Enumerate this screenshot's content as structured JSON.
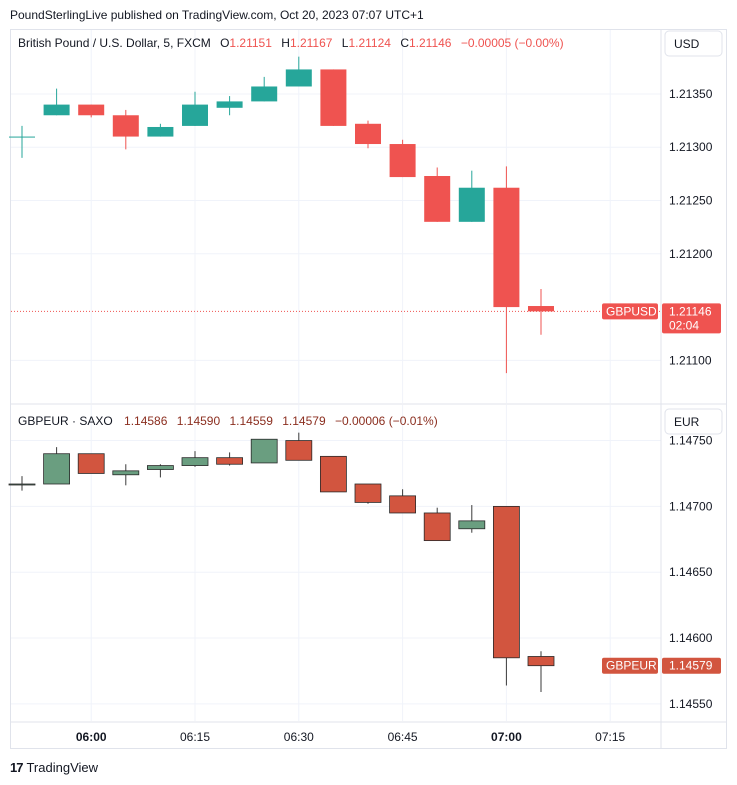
{
  "header": {
    "published": "PoundSterlingLive published on TradingView.com, Oct 20, 2023 07:07 UTC+1"
  },
  "footer": {
    "logo_glyph": "17",
    "brand": "TradingView"
  },
  "colors": {
    "up_top": "#26a69a",
    "down_top": "#ef5350",
    "up_bottom": "#6a9e80",
    "down_bottom": "#d2553f",
    "text": "#131722",
    "grid": "#f0f3fa",
    "border": "#e0e3eb"
  },
  "chart_data": [
    {
      "type": "candlestick",
      "legend": {
        "name": "British Pound / U.S. Dollar, 5, FXCM",
        "o_label": "O",
        "o": "1.21151",
        "h_label": "H",
        "h": "1.21167",
        "l_label": "L",
        "l": "1.21124",
        "c_label": "C",
        "c": "1.21146",
        "change": "−0.00005 (−0.00%)"
      },
      "currency": "USD",
      "price_tag": {
        "symbol": "GBPUSD",
        "value": "1.21146",
        "countdown": "02:04"
      },
      "y_ticks": [
        "1.21350",
        "1.21300",
        "1.21250",
        "1.21200",
        "1.21100"
      ],
      "y_tick_values": [
        1.2135,
        1.213,
        1.2125,
        1.212,
        1.211
      ],
      "ylim": [
        1.2106,
        1.2141
      ],
      "last_price": 1.21146,
      "candles": [
        {
          "t": "05:50",
          "o": 1.2131,
          "h": 1.2132,
          "l": 1.2129,
          "c": 1.2131
        },
        {
          "t": "05:55",
          "o": 1.2133,
          "h": 1.21355,
          "l": 1.2133,
          "c": 1.2134
        },
        {
          "t": "06:00",
          "o": 1.2134,
          "h": 1.2134,
          "l": 1.21328,
          "c": 1.2133
        },
        {
          "t": "06:05",
          "o": 1.2133,
          "h": 1.21335,
          "l": 1.21298,
          "c": 1.2131
        },
        {
          "t": "06:10",
          "o": 1.2131,
          "h": 1.21322,
          "l": 1.2131,
          "c": 1.21319
        },
        {
          "t": "06:15",
          "o": 1.2132,
          "h": 1.21352,
          "l": 1.2132,
          "c": 1.2134
        },
        {
          "t": "06:20",
          "o": 1.21337,
          "h": 1.21348,
          "l": 1.2133,
          "c": 1.21343
        },
        {
          "t": "06:25",
          "o": 1.21343,
          "h": 1.21366,
          "l": 1.21343,
          "c": 1.21357
        },
        {
          "t": "06:30",
          "o": 1.21357,
          "h": 1.21385,
          "l": 1.21357,
          "c": 1.21373
        },
        {
          "t": "06:35",
          "o": 1.21373,
          "h": 1.21373,
          "l": 1.2132,
          "c": 1.2132
        },
        {
          "t": "06:40",
          "o": 1.21322,
          "h": 1.21325,
          "l": 1.21299,
          "c": 1.21303
        },
        {
          "t": "06:45",
          "o": 1.21303,
          "h": 1.21307,
          "l": 1.21272,
          "c": 1.21272
        },
        {
          "t": "06:50",
          "o": 1.21273,
          "h": 1.21281,
          "l": 1.2123,
          "c": 1.2123
        },
        {
          "t": "06:55",
          "o": 1.2123,
          "h": 1.21278,
          "l": 1.2123,
          "c": 1.21262
        },
        {
          "t": "07:00",
          "o": 1.21262,
          "h": 1.21282,
          "l": 1.21088,
          "c": 1.2115
        },
        {
          "t": "07:05",
          "o": 1.21151,
          "h": 1.21167,
          "l": 1.21124,
          "c": 1.21146
        }
      ]
    },
    {
      "type": "candlestick",
      "legend": {
        "name": "GBPEUR · SAXO",
        "o": "1.14586",
        "h": "1.14590",
        "l": "1.14559",
        "c": "1.14579",
        "change": "−0.00006 (−0.01%)"
      },
      "currency": "EUR",
      "price_tag": {
        "symbol": "GBPEUR",
        "value": "1.14579"
      },
      "y_ticks": [
        "1.14750",
        "1.14700",
        "1.14650",
        "1.14600",
        "1.14550"
      ],
      "y_tick_values": [
        1.1475,
        1.147,
        1.1465,
        1.146,
        1.1455
      ],
      "ylim": [
        1.14537,
        1.14777
      ],
      "last_price": 1.14579,
      "x_ticks": [
        {
          "label": "06:00",
          "bold": true,
          "i": 2
        },
        {
          "label": "06:15",
          "bold": false,
          "i": 5
        },
        {
          "label": "06:30",
          "bold": false,
          "i": 8
        },
        {
          "label": "06:45",
          "bold": false,
          "i": 11
        },
        {
          "label": "07:00",
          "bold": true,
          "i": 14
        },
        {
          "label": "07:15",
          "bold": false,
          "i": 17
        }
      ],
      "candles": [
        {
          "t": "05:50",
          "o": 1.14717,
          "h": 1.14723,
          "l": 1.14712,
          "c": 1.14717
        },
        {
          "t": "05:55",
          "o": 1.14717,
          "h": 1.14745,
          "l": 1.14717,
          "c": 1.1474
        },
        {
          "t": "06:00",
          "o": 1.1474,
          "h": 1.1474,
          "l": 1.14725,
          "c": 1.14725
        },
        {
          "t": "06:05",
          "o": 1.14724,
          "h": 1.14732,
          "l": 1.14716,
          "c": 1.14727
        },
        {
          "t": "06:10",
          "o": 1.14728,
          "h": 1.14732,
          "l": 1.14722,
          "c": 1.14731
        },
        {
          "t": "06:15",
          "o": 1.14731,
          "h": 1.14742,
          "l": 1.1473,
          "c": 1.14737
        },
        {
          "t": "06:20",
          "o": 1.14737,
          "h": 1.14741,
          "l": 1.14731,
          "c": 1.14732
        },
        {
          "t": "06:25",
          "o": 1.14733,
          "h": 1.14751,
          "l": 1.14733,
          "c": 1.14751
        },
        {
          "t": "06:30",
          "o": 1.1475,
          "h": 1.14756,
          "l": 1.14735,
          "c": 1.14735
        },
        {
          "t": "06:35",
          "o": 1.14738,
          "h": 1.14738,
          "l": 1.14711,
          "c": 1.14711
        },
        {
          "t": "06:40",
          "o": 1.14717,
          "h": 1.14717,
          "l": 1.14702,
          "c": 1.14703
        },
        {
          "t": "06:45",
          "o": 1.14708,
          "h": 1.14713,
          "l": 1.14695,
          "c": 1.14695
        },
        {
          "t": "06:50",
          "o": 1.14695,
          "h": 1.14699,
          "l": 1.14674,
          "c": 1.14674
        },
        {
          "t": "06:55",
          "o": 1.14683,
          "h": 1.14701,
          "l": 1.1468,
          "c": 1.14689
        },
        {
          "t": "07:00",
          "o": 1.147,
          "h": 1.147,
          "l": 1.14564,
          "c": 1.14585
        },
        {
          "t": "07:05",
          "o": 1.14586,
          "h": 1.1459,
          "l": 1.14559,
          "c": 1.14579
        }
      ]
    }
  ]
}
